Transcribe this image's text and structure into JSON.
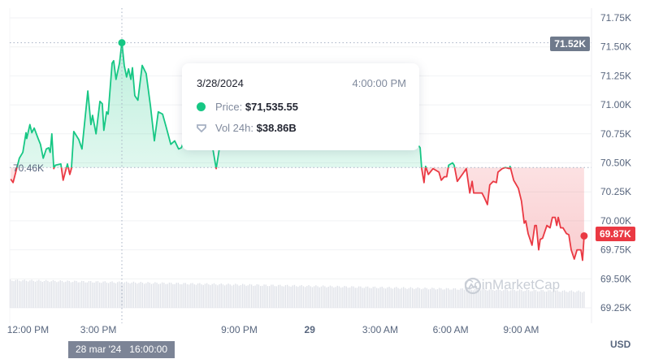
{
  "chart_data": {
    "type": "line",
    "currency": "USD",
    "baseline": {
      "label": "70.46K",
      "value": 70.46
    },
    "ylim": [
      69.25,
      71.75
    ],
    "y_ticks": [
      "71.75K",
      "71.50K",
      "71.25K",
      "71.00K",
      "70.75K",
      "70.50K",
      "70.25K",
      "70.00K",
      "69.75K",
      "69.50K",
      "69.25K"
    ],
    "x_ticks": [
      {
        "label": "12:00 PM",
        "time": "3/28 12:00",
        "bold": false
      },
      {
        "label": "3:00 PM",
        "time": "3/28 15:00",
        "bold": false
      },
      {
        "label": "9:00 PM",
        "time": "3/28 21:00",
        "bold": false
      },
      {
        "label": "29",
        "time": "3/29 00:00",
        "bold": true
      },
      {
        "label": "3:00 AM",
        "time": "3/29 03:00",
        "bold": false
      },
      {
        "label": "6:00 AM",
        "time": "3/29 06:00",
        "bold": false
      },
      {
        "label": "9:00 AM",
        "time": "3/29 09:00",
        "bold": false
      }
    ],
    "colors": {
      "up": "#16c784",
      "down": "#ea3943",
      "volume": "#dfe2e8",
      "crosshair_tag": "#6f7a8c"
    },
    "grid": true,
    "current_price": {
      "label": "69.87K",
      "value": 69.87
    },
    "hover": {
      "x_label": "28 mar '24   16:00:00",
      "y_label": "71.52K",
      "date": "3/28/2024",
      "time": "4:00:00 PM",
      "price_label": "Price:",
      "price": "$71,535.55",
      "price_value": 71.53555,
      "vol_label": "Vol 24h:",
      "vol": "$38.86B"
    },
    "series": [
      {
        "points": [
          [
            "3/28 11:16",
            70.36
          ],
          [
            "3/28 11:22",
            70.33
          ],
          [
            "3/28 11:38",
            70.54
          ],
          [
            "3/28 11:47",
            70.59
          ],
          [
            "3/28 11:55",
            70.76
          ],
          [
            "3/28 11:57",
            70.71
          ],
          [
            "3/28 12:05",
            70.83
          ],
          [
            "3/28 12:10",
            70.76
          ],
          [
            "3/28 12:16",
            70.8
          ],
          [
            "3/28 12:26",
            70.71
          ],
          [
            "3/28 12:32",
            70.66
          ],
          [
            "3/28 12:39",
            70.54
          ],
          [
            "3/28 12:47",
            70.62
          ],
          [
            "3/28 12:53",
            70.63
          ],
          [
            "3/28 12:57",
            70.59
          ],
          [
            "3/28 13:01",
            70.75
          ],
          [
            "3/28 13:06",
            70.45
          ],
          [
            "3/28 13:10",
            70.48
          ],
          [
            "3/28 13:24",
            70.49
          ],
          [
            "3/28 13:30",
            70.35
          ],
          [
            "3/28 13:41",
            70.49
          ],
          [
            "3/28 13:47",
            70.4
          ],
          [
            "3/28 13:51",
            70.45
          ],
          [
            "3/28 13:57",
            70.77
          ],
          [
            "3/28 14:10",
            70.7
          ],
          [
            "3/28 14:18",
            70.62
          ],
          [
            "3/28 14:33",
            71.12
          ],
          [
            "3/28 14:41",
            70.83
          ],
          [
            "3/28 14:45",
            70.91
          ],
          [
            "3/28 14:54",
            70.75
          ],
          [
            "3/28 15:04",
            71.03
          ],
          [
            "3/28 15:10",
            71.01
          ],
          [
            "3/28 15:14",
            70.78
          ],
          [
            "3/28 15:21",
            70.94
          ],
          [
            "3/28 15:25",
            70.92
          ],
          [
            "3/28 15:35",
            71.36
          ],
          [
            "3/28 15:39",
            71.38
          ],
          [
            "3/28 15:45",
            71.22
          ],
          [
            "3/28 15:54",
            71.36
          ],
          [
            "3/28 16:00",
            71.54
          ],
          [
            "3/28 16:06",
            71.34
          ],
          [
            "3/28 16:12",
            71.24
          ],
          [
            "3/28 16:17",
            71.31
          ],
          [
            "3/28 16:23",
            71.22
          ],
          [
            "3/28 16:27",
            71.32
          ],
          [
            "3/28 16:33",
            71.08
          ],
          [
            "3/28 16:41",
            71.04
          ],
          [
            "3/28 16:52",
            71.34
          ],
          [
            "3/28 17:02",
            71.27
          ],
          [
            "3/28 17:13",
            70.99
          ],
          [
            "3/28 17:23",
            70.69
          ],
          [
            "3/28 17:33",
            70.94
          ],
          [
            "3/28 17:44",
            70.92
          ],
          [
            "3/28 17:54",
            70.8
          ],
          [
            "3/28 18:05",
            70.66
          ],
          [
            "3/28 18:15",
            70.69
          ],
          [
            "3/28 18:25",
            70.62
          ],
          [
            "3/28 18:32",
            70.63
          ],
          [
            "3/28 18:56",
            70.85
          ],
          [
            "3/28 19:28",
            70.99
          ],
          [
            "3/28 19:48",
            70.71
          ],
          [
            "3/28 20:01",
            70.45
          ],
          [
            "3/28 20:13",
            70.71
          ],
          [
            "3/28 20:51",
            71.06
          ],
          [
            "3/28 21:53",
            70.92
          ],
          [
            "3/28 22:55",
            71.13
          ],
          [
            "3/28 23:58",
            70.85
          ],
          [
            "3/29 01:00",
            70.85
          ],
          [
            "3/29 02:02",
            71.06
          ],
          [
            "3/29 03:04",
            70.92
          ],
          [
            "3/29 04:07",
            70.99
          ],
          [
            "3/29 04:31",
            70.68
          ],
          [
            "3/29 04:42",
            70.63
          ],
          [
            "3/29 04:46",
            70.45
          ],
          [
            "3/29 04:52",
            70.33
          ],
          [
            "3/29 04:56",
            70.47
          ],
          [
            "3/29 05:03",
            70.4
          ],
          [
            "3/29 05:15",
            70.45
          ],
          [
            "3/29 05:30",
            70.42
          ],
          [
            "3/29 05:36",
            70.35
          ],
          [
            "3/29 05:44",
            70.38
          ],
          [
            "3/29 05:50",
            70.38
          ],
          [
            "3/29 05:55",
            70.48
          ],
          [
            "3/29 06:05",
            70.5
          ],
          [
            "3/29 06:09",
            70.48
          ],
          [
            "3/29 06:17",
            70.34
          ],
          [
            "3/29 06:32",
            70.41
          ],
          [
            "3/29 06:40",
            70.45
          ],
          [
            "3/29 06:49",
            70.24
          ],
          [
            "3/29 06:55",
            70.34
          ],
          [
            "3/29 06:59",
            70.24
          ],
          [
            "3/29 07:09",
            70.24
          ],
          [
            "3/29 07:20",
            70.24
          ],
          [
            "3/29 07:26",
            70.2
          ],
          [
            "3/29 07:34",
            70.14
          ],
          [
            "3/29 07:40",
            70.31
          ],
          [
            "3/29 07:49",
            70.34
          ],
          [
            "3/29 07:57",
            70.33
          ],
          [
            "3/29 08:01",
            70.42
          ],
          [
            "3/29 08:12",
            70.45
          ],
          [
            "3/29 08:20",
            70.46
          ],
          [
            "3/29 08:30",
            70.45
          ],
          [
            "3/29 08:32",
            70.47
          ],
          [
            "3/29 08:41",
            70.35
          ],
          [
            "3/29 08:53",
            70.28
          ],
          [
            "3/29 09:01",
            70.17
          ],
          [
            "3/29 09:08",
            69.98
          ],
          [
            "3/29 09:12",
            70.0
          ],
          [
            "3/29 09:18",
            69.89
          ],
          [
            "3/29 09:28",
            69.79
          ],
          [
            "3/29 09:35",
            69.96
          ],
          [
            "3/29 09:39",
            69.96
          ],
          [
            "3/29 09:45",
            69.75
          ],
          [
            "3/29 09:49",
            69.84
          ],
          [
            "3/29 09:55",
            69.85
          ],
          [
            "3/29 10:06",
            69.96
          ],
          [
            "3/29 10:14",
            69.94
          ],
          [
            "3/29 10:20",
            70.03
          ],
          [
            "3/29 10:27",
            70.03
          ],
          [
            "3/29 10:31",
            69.96
          ],
          [
            "3/29 10:35",
            70.03
          ],
          [
            "3/29 10:41",
            69.94
          ],
          [
            "3/29 10:47",
            69.94
          ],
          [
            "3/29 10:56",
            69.89
          ],
          [
            "3/29 11:02",
            69.88
          ],
          [
            "3/29 11:08",
            69.75
          ],
          [
            "3/29 11:16",
            69.67
          ],
          [
            "3/29 11:23",
            69.75
          ],
          [
            "3/29 11:33",
            69.75
          ],
          [
            "3/29 11:37",
            69.66
          ],
          [
            "3/29 11:41",
            69.87
          ]
        ]
      }
    ]
  },
  "watermark": "CoinMarketCap"
}
